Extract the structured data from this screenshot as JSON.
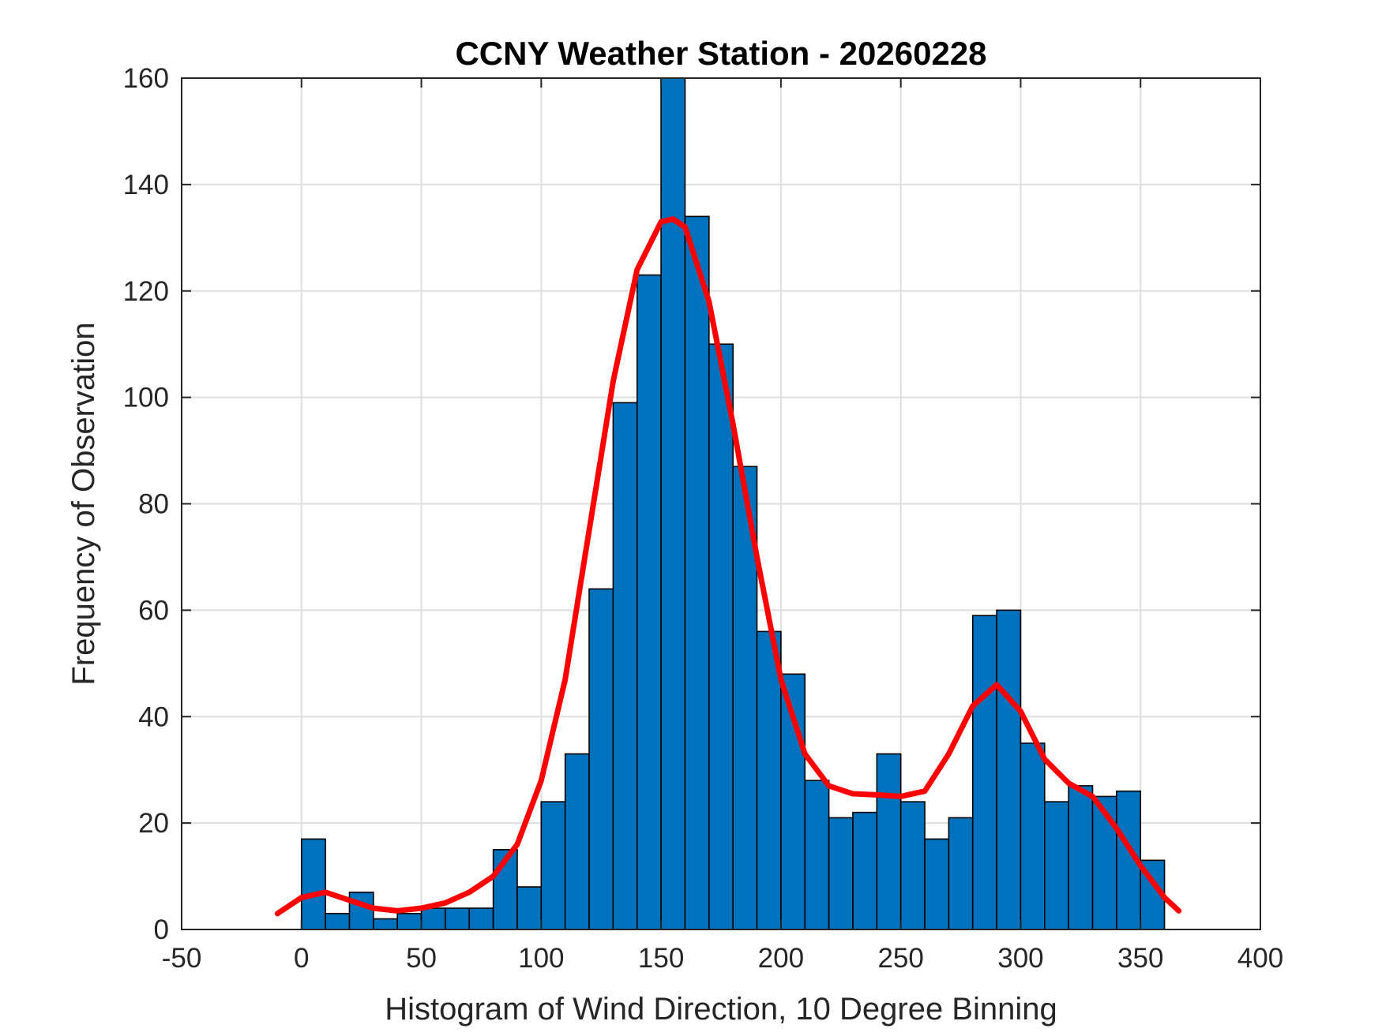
{
  "chart_data": {
    "type": "bar",
    "title": "CCNY Weather Station - 20260228",
    "xlabel": "Histogram of Wind Direction, 10 Degree Binning",
    "ylabel": "Frequency of Observation",
    "xlim": [
      -50,
      400
    ],
    "ylim": [
      0,
      160
    ],
    "x_ticks": [
      -50,
      0,
      50,
      100,
      150,
      200,
      250,
      300,
      350,
      400
    ],
    "y_ticks": [
      0,
      20,
      40,
      60,
      80,
      100,
      120,
      140,
      160
    ],
    "grid": true,
    "bar_color": "#0072BD",
    "bin_width": 10,
    "bins": [
      {
        "start": 0,
        "value": 17
      },
      {
        "start": 10,
        "value": 3
      },
      {
        "start": 20,
        "value": 7
      },
      {
        "start": 30,
        "value": 2
      },
      {
        "start": 40,
        "value": 3
      },
      {
        "start": 50,
        "value": 4
      },
      {
        "start": 60,
        "value": 4
      },
      {
        "start": 70,
        "value": 4
      },
      {
        "start": 80,
        "value": 15
      },
      {
        "start": 90,
        "value": 8
      },
      {
        "start": 100,
        "value": 24
      },
      {
        "start": 110,
        "value": 33
      },
      {
        "start": 120,
        "value": 64
      },
      {
        "start": 130,
        "value": 99
      },
      {
        "start": 140,
        "value": 123
      },
      {
        "start": 150,
        "value": 160
      },
      {
        "start": 160,
        "value": 134
      },
      {
        "start": 170,
        "value": 110
      },
      {
        "start": 180,
        "value": 87
      },
      {
        "start": 190,
        "value": 56
      },
      {
        "start": 200,
        "value": 48
      },
      {
        "start": 210,
        "value": 28
      },
      {
        "start": 220,
        "value": 21
      },
      {
        "start": 230,
        "value": 22
      },
      {
        "start": 240,
        "value": 33
      },
      {
        "start": 250,
        "value": 24
      },
      {
        "start": 260,
        "value": 17
      },
      {
        "start": 270,
        "value": 21
      },
      {
        "start": 280,
        "value": 59
      },
      {
        "start": 290,
        "value": 60
      },
      {
        "start": 300,
        "value": 35
      },
      {
        "start": 310,
        "value": 24
      },
      {
        "start": 320,
        "value": 27
      },
      {
        "start": 330,
        "value": 25
      },
      {
        "start": 340,
        "value": 26
      },
      {
        "start": 350,
        "value": 13
      }
    ],
    "fit_curve": {
      "name": "density fit",
      "color": "#ff0000",
      "points": [
        [
          -10,
          3
        ],
        [
          0,
          6
        ],
        [
          10,
          7
        ],
        [
          20,
          5.5
        ],
        [
          30,
          4
        ],
        [
          40,
          3.5
        ],
        [
          50,
          4
        ],
        [
          60,
          5
        ],
        [
          70,
          7
        ],
        [
          80,
          10
        ],
        [
          90,
          16
        ],
        [
          100,
          28
        ],
        [
          110,
          47
        ],
        [
          120,
          75
        ],
        [
          130,
          103
        ],
        [
          140,
          124
        ],
        [
          150,
          133
        ],
        [
          155,
          133.5
        ],
        [
          160,
          132
        ],
        [
          170,
          118
        ],
        [
          180,
          95
        ],
        [
          190,
          70
        ],
        [
          200,
          47
        ],
        [
          210,
          33
        ],
        [
          220,
          27
        ],
        [
          230,
          25.5
        ],
        [
          240,
          25.3
        ],
        [
          250,
          25
        ],
        [
          260,
          26
        ],
        [
          270,
          33
        ],
        [
          280,
          42
        ],
        [
          290,
          46
        ],
        [
          300,
          41
        ],
        [
          310,
          32
        ],
        [
          320,
          27.5
        ],
        [
          330,
          25
        ],
        [
          340,
          19
        ],
        [
          350,
          12
        ],
        [
          360,
          6
        ],
        [
          366,
          3.5
        ]
      ]
    }
  }
}
